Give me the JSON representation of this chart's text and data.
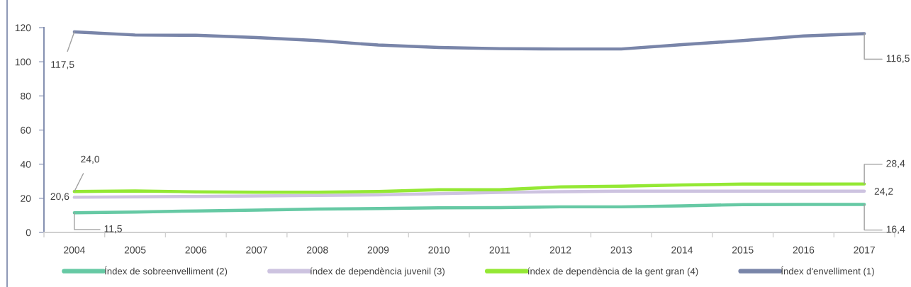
{
  "chart_data": {
    "type": "line",
    "categories": [
      "2004",
      "2005",
      "2006",
      "2007",
      "2008",
      "2009",
      "2010",
      "2011",
      "2012",
      "2013",
      "2014",
      "2015",
      "2016",
      "2017"
    ],
    "series": [
      {
        "name": "Índex de sobreenvelliment (2)",
        "color": "#66c9a4",
        "values": [
          11.5,
          11.9,
          12.6,
          13.1,
          13.7,
          14.0,
          14.4,
          14.5,
          15.0,
          15.0,
          15.6,
          16.3,
          16.4,
          16.4
        ],
        "value_labels": [
          "11,5",
          null,
          null,
          null,
          null,
          null,
          null,
          null,
          null,
          null,
          null,
          null,
          null,
          "16,4"
        ]
      },
      {
        "name": "índex de dependència juvenil (3)",
        "color": "#cdc3e0",
        "values": [
          20.6,
          20.9,
          21.1,
          21.4,
          21.7,
          22.0,
          22.7,
          23.4,
          23.9,
          24.2,
          24.2,
          24.2,
          24.2,
          24.2
        ],
        "value_labels": [
          "20,6",
          null,
          null,
          null,
          null,
          null,
          null,
          null,
          null,
          null,
          null,
          null,
          null,
          "24,2"
        ]
      },
      {
        "name": "índex de dependència de la gent gran (4)",
        "color": "#94e834",
        "values": [
          24.0,
          24.3,
          23.8,
          23.6,
          23.6,
          24.0,
          25.0,
          25.0,
          26.7,
          27.1,
          27.8,
          28.3,
          28.3,
          28.4
        ],
        "value_labels": [
          "24,0",
          null,
          null,
          null,
          null,
          null,
          null,
          null,
          null,
          null,
          null,
          null,
          null,
          "28,4"
        ]
      },
      {
        "name": "Índex d'envelliment (1)",
        "color": "#7985a9",
        "values": [
          117.5,
          115.7,
          115.5,
          114.2,
          112.4,
          109.8,
          108.4,
          107.7,
          107.5,
          107.5,
          110.0,
          112.4,
          115.1,
          116.5
        ],
        "value_labels": [
          "117,5",
          null,
          null,
          null,
          null,
          null,
          null,
          null,
          null,
          null,
          null,
          null,
          null,
          "116,5"
        ]
      }
    ],
    "ylim": [
      0,
      120
    ],
    "yticks": [
      0,
      20,
      40,
      60,
      80,
      100,
      120
    ],
    "grid": false,
    "legend": "bottom",
    "marker": "none",
    "line_style": "solid"
  }
}
